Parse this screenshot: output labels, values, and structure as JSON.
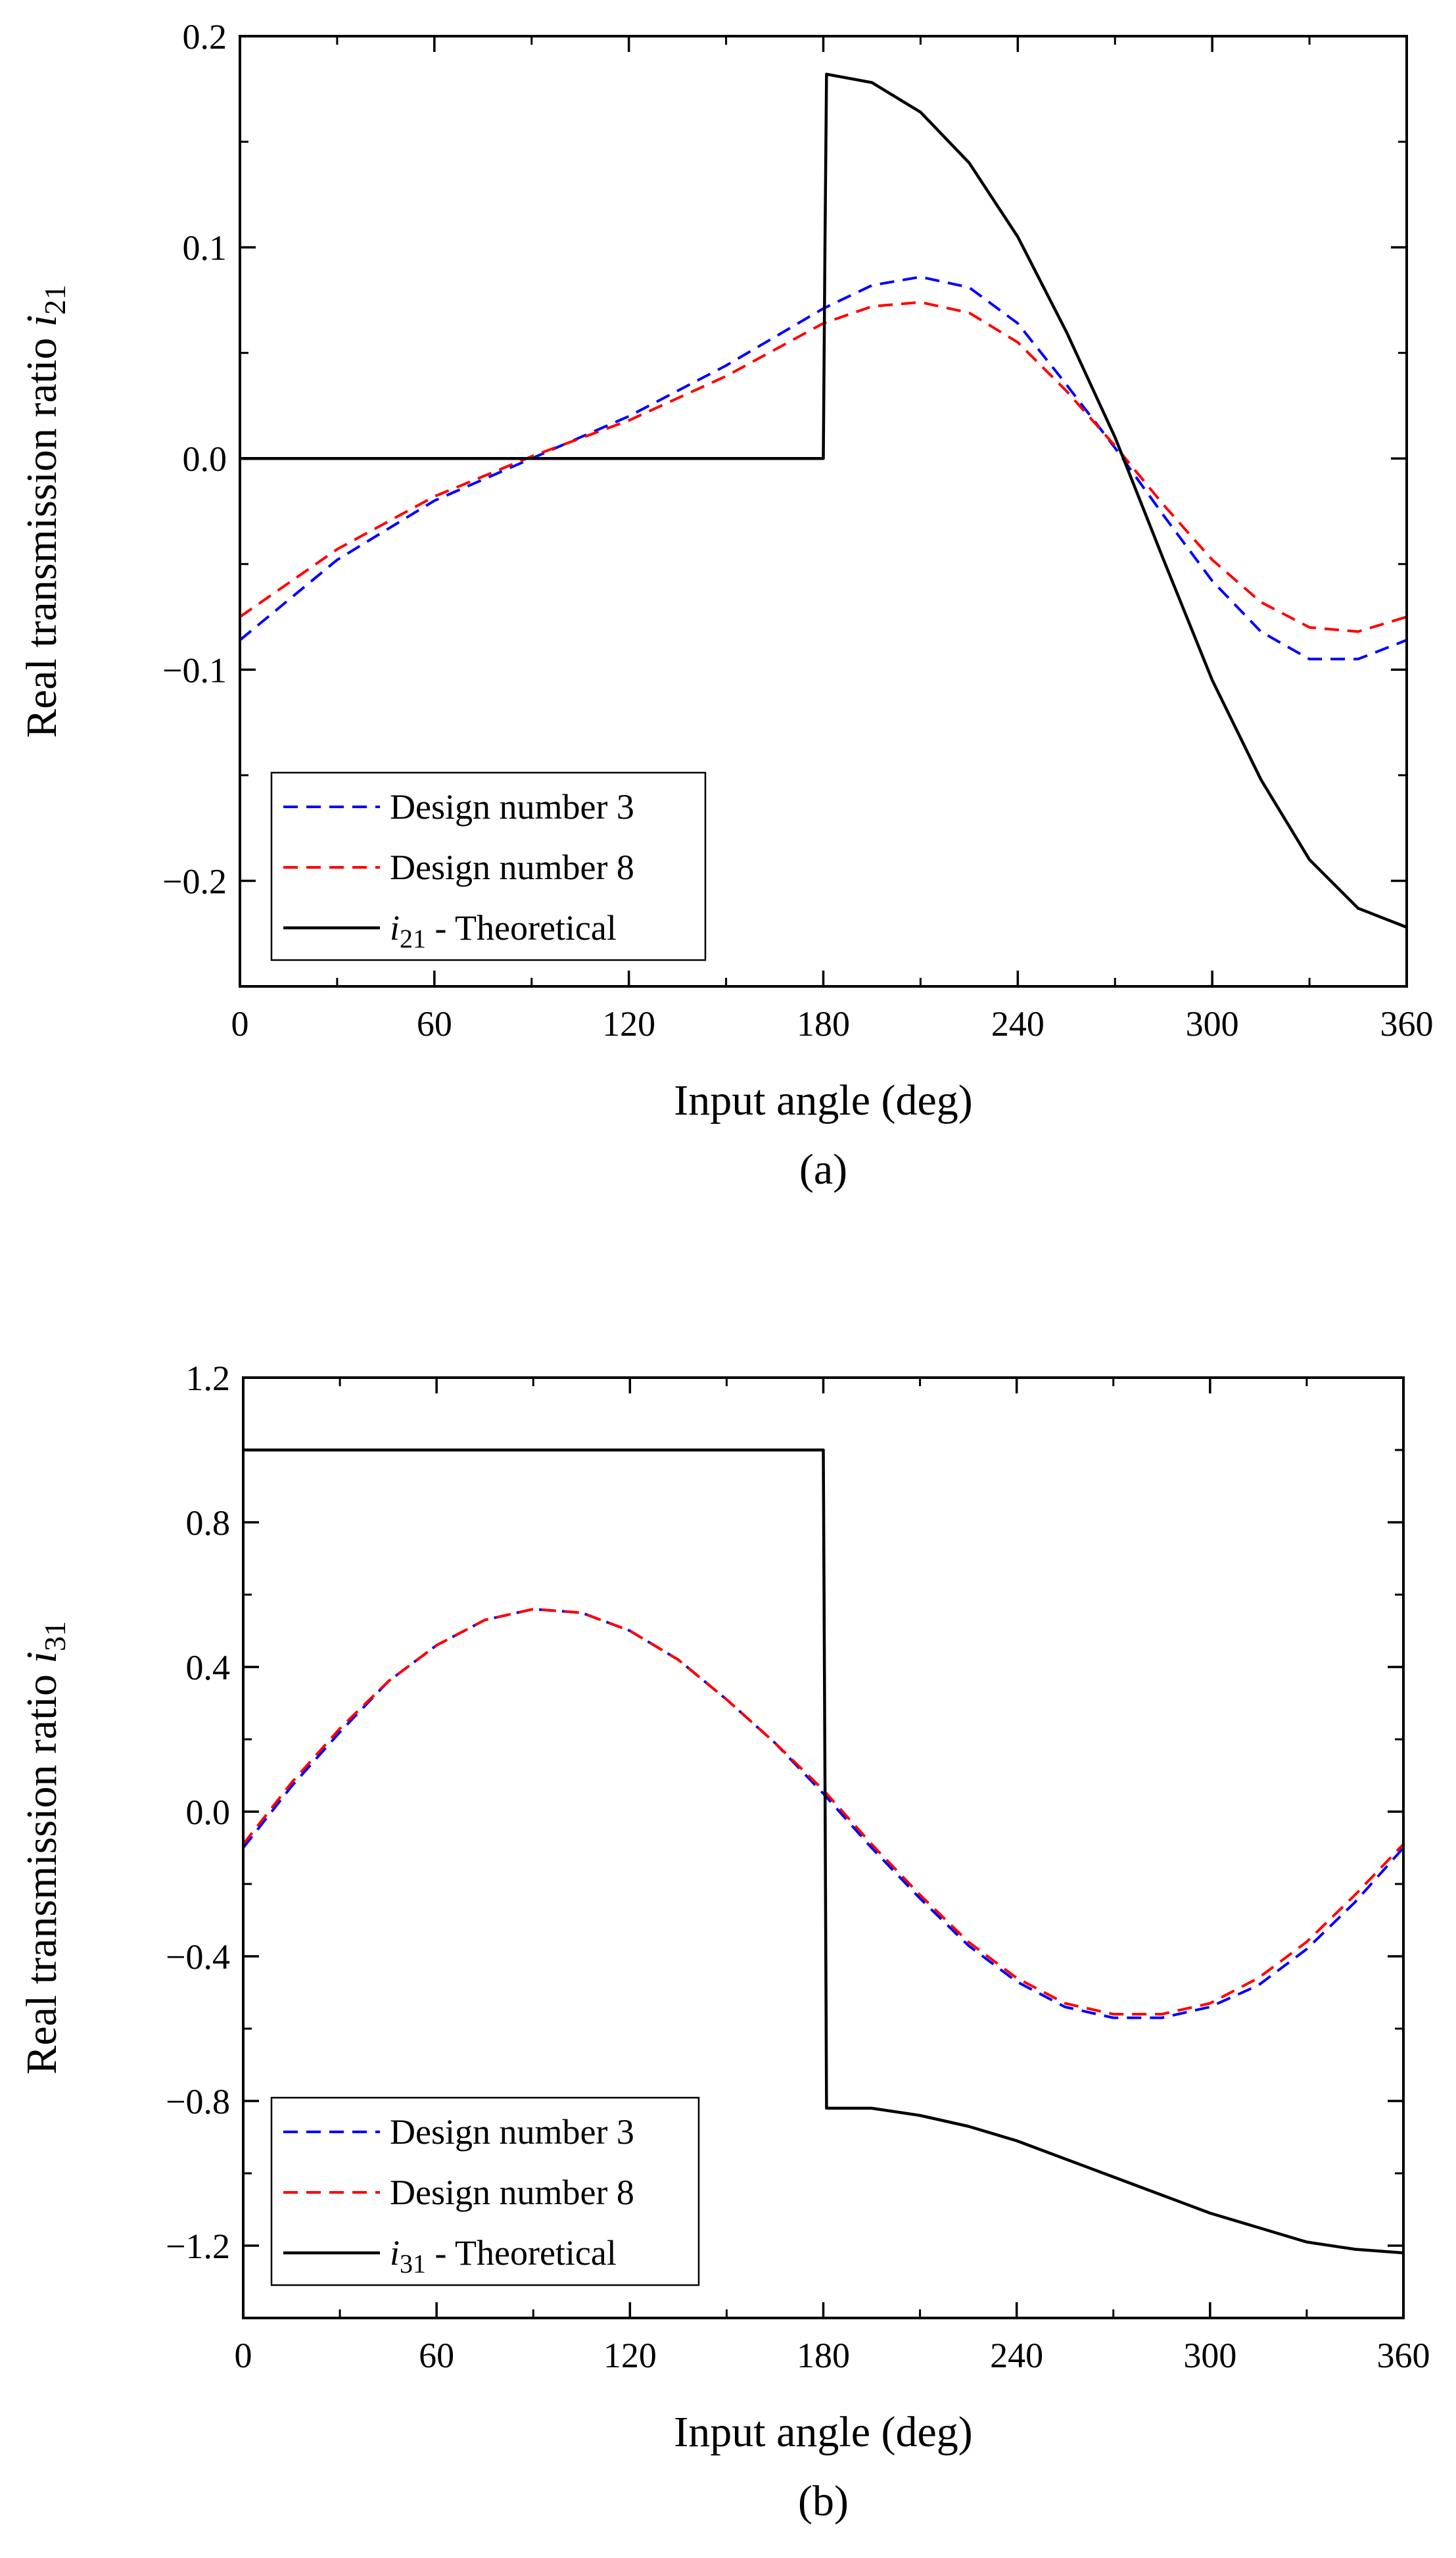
{
  "chart_data": [
    {
      "type": "line",
      "caption": "(a)",
      "xlabel": "Input angle (deg)",
      "ylabel": "Real transmission ratio i21",
      "ylabel_parts": {
        "main": "Real transmission ratio ",
        "italic": "i",
        "sub": "21"
      },
      "xlim": [
        0,
        360
      ],
      "ylim": [
        -0.25,
        0.2
      ],
      "x_ticks": [
        "0",
        "60",
        "120",
        "180",
        "240",
        "300",
        "360"
      ],
      "y_ticks": [
        "0.2",
        "0.1",
        "0.0",
        "−0.1",
        "−0.2"
      ],
      "y_tick_values": [
        0.2,
        0.1,
        0.0,
        -0.1,
        -0.2
      ],
      "legend_position": "bottom-left",
      "series": [
        {
          "name": "Design number 3",
          "color": "#0000ff",
          "dashed": true,
          "x": [
            0,
            30,
            60,
            90,
            120,
            150,
            180,
            195,
            210,
            225,
            240,
            255,
            270,
            285,
            300,
            315,
            330,
            345,
            360
          ],
          "y": [
            -0.086,
            -0.048,
            -0.02,
            0.0,
            0.02,
            0.044,
            0.071,
            0.082,
            0.086,
            0.081,
            0.064,
            0.035,
            0.005,
            -0.027,
            -0.058,
            -0.082,
            -0.095,
            -0.095,
            -0.086
          ]
        },
        {
          "name": "Design number 8",
          "color": "#ff0000",
          "dashed": true,
          "x": [
            0,
            30,
            60,
            90,
            120,
            150,
            180,
            195,
            210,
            225,
            240,
            255,
            270,
            285,
            300,
            315,
            330,
            345,
            360
          ],
          "y": [
            -0.075,
            -0.043,
            -0.018,
            0.001,
            0.018,
            0.039,
            0.064,
            0.072,
            0.074,
            0.069,
            0.055,
            0.032,
            0.006,
            -0.022,
            -0.048,
            -0.068,
            -0.08,
            -0.082,
            -0.075
          ]
        },
        {
          "name": "i21 - Theoretical",
          "name_parts": {
            "italic": "i",
            "sub": "21",
            "rest": " - Theoretical"
          },
          "color": "#000000",
          "dashed": false,
          "x": [
            0,
            180,
            180.5,
            181,
            195,
            210,
            225,
            240,
            255,
            270,
            285,
            300,
            315,
            330,
            345,
            360
          ],
          "y": [
            0,
            0,
            0.1,
            0.182,
            0.178,
            0.164,
            0.14,
            0.105,
            0.06,
            0.01,
            -0.048,
            -0.105,
            -0.152,
            -0.19,
            -0.213,
            -0.222
          ]
        }
      ]
    },
    {
      "type": "line",
      "caption": "(b)",
      "xlabel": "Input angle (deg)",
      "ylabel": "Real transmission ratio i31",
      "ylabel_parts": {
        "main": "Real transmission ratio ",
        "italic": "i",
        "sub": "31"
      },
      "xlim": [
        0,
        360
      ],
      "ylim": [
        -1.4,
        1.2
      ],
      "x_ticks": [
        "0",
        "60",
        "120",
        "180",
        "240",
        "300",
        "360"
      ],
      "y_ticks": [
        "1.2",
        "0.8",
        "0.4",
        "0.0",
        "−0.4",
        "−0.8",
        "−1.2"
      ],
      "y_tick_values": [
        1.2,
        0.8,
        0.4,
        0.0,
        -0.4,
        -0.8,
        -1.2
      ],
      "legend_position": "bottom-left",
      "series": [
        {
          "name": "Design number 3",
          "color": "#0000ff",
          "dashed": true,
          "x": [
            0,
            15,
            30,
            45,
            60,
            75,
            90,
            105,
            120,
            135,
            150,
            165,
            180,
            195,
            210,
            225,
            240,
            255,
            270,
            285,
            300,
            315,
            330,
            345,
            360
          ],
          "y": [
            -0.1,
            0.07,
            0.22,
            0.36,
            0.46,
            0.53,
            0.56,
            0.55,
            0.5,
            0.42,
            0.31,
            0.19,
            0.05,
            -0.1,
            -0.24,
            -0.37,
            -0.47,
            -0.54,
            -0.57,
            -0.57,
            -0.54,
            -0.48,
            -0.38,
            -0.25,
            -0.1
          ]
        },
        {
          "name": "Design number 8",
          "color": "#ff0000",
          "dashed": true,
          "x": [
            0,
            15,
            30,
            45,
            60,
            75,
            90,
            105,
            120,
            135,
            150,
            165,
            180,
            195,
            210,
            225,
            240,
            255,
            270,
            285,
            300,
            315,
            330,
            345,
            360
          ],
          "y": [
            -0.09,
            0.08,
            0.23,
            0.36,
            0.46,
            0.53,
            0.56,
            0.55,
            0.5,
            0.42,
            0.31,
            0.19,
            0.06,
            -0.09,
            -0.23,
            -0.36,
            -0.46,
            -0.53,
            -0.56,
            -0.56,
            -0.53,
            -0.46,
            -0.36,
            -0.23,
            -0.09
          ]
        },
        {
          "name": "i31 - Theoretical",
          "name_parts": {
            "italic": "i",
            "sub": "31",
            "rest": " - Theoretical"
          },
          "color": "#000000",
          "dashed": false,
          "x": [
            0,
            180,
            180.5,
            181,
            195,
            210,
            225,
            240,
            255,
            270,
            285,
            300,
            315,
            330,
            345,
            360
          ],
          "y": [
            1.0,
            1.0,
            0.1,
            -0.82,
            -0.82,
            -0.84,
            -0.87,
            -0.91,
            -0.96,
            -1.01,
            -1.06,
            -1.11,
            -1.15,
            -1.19,
            -1.21,
            -1.22
          ]
        }
      ]
    }
  ]
}
